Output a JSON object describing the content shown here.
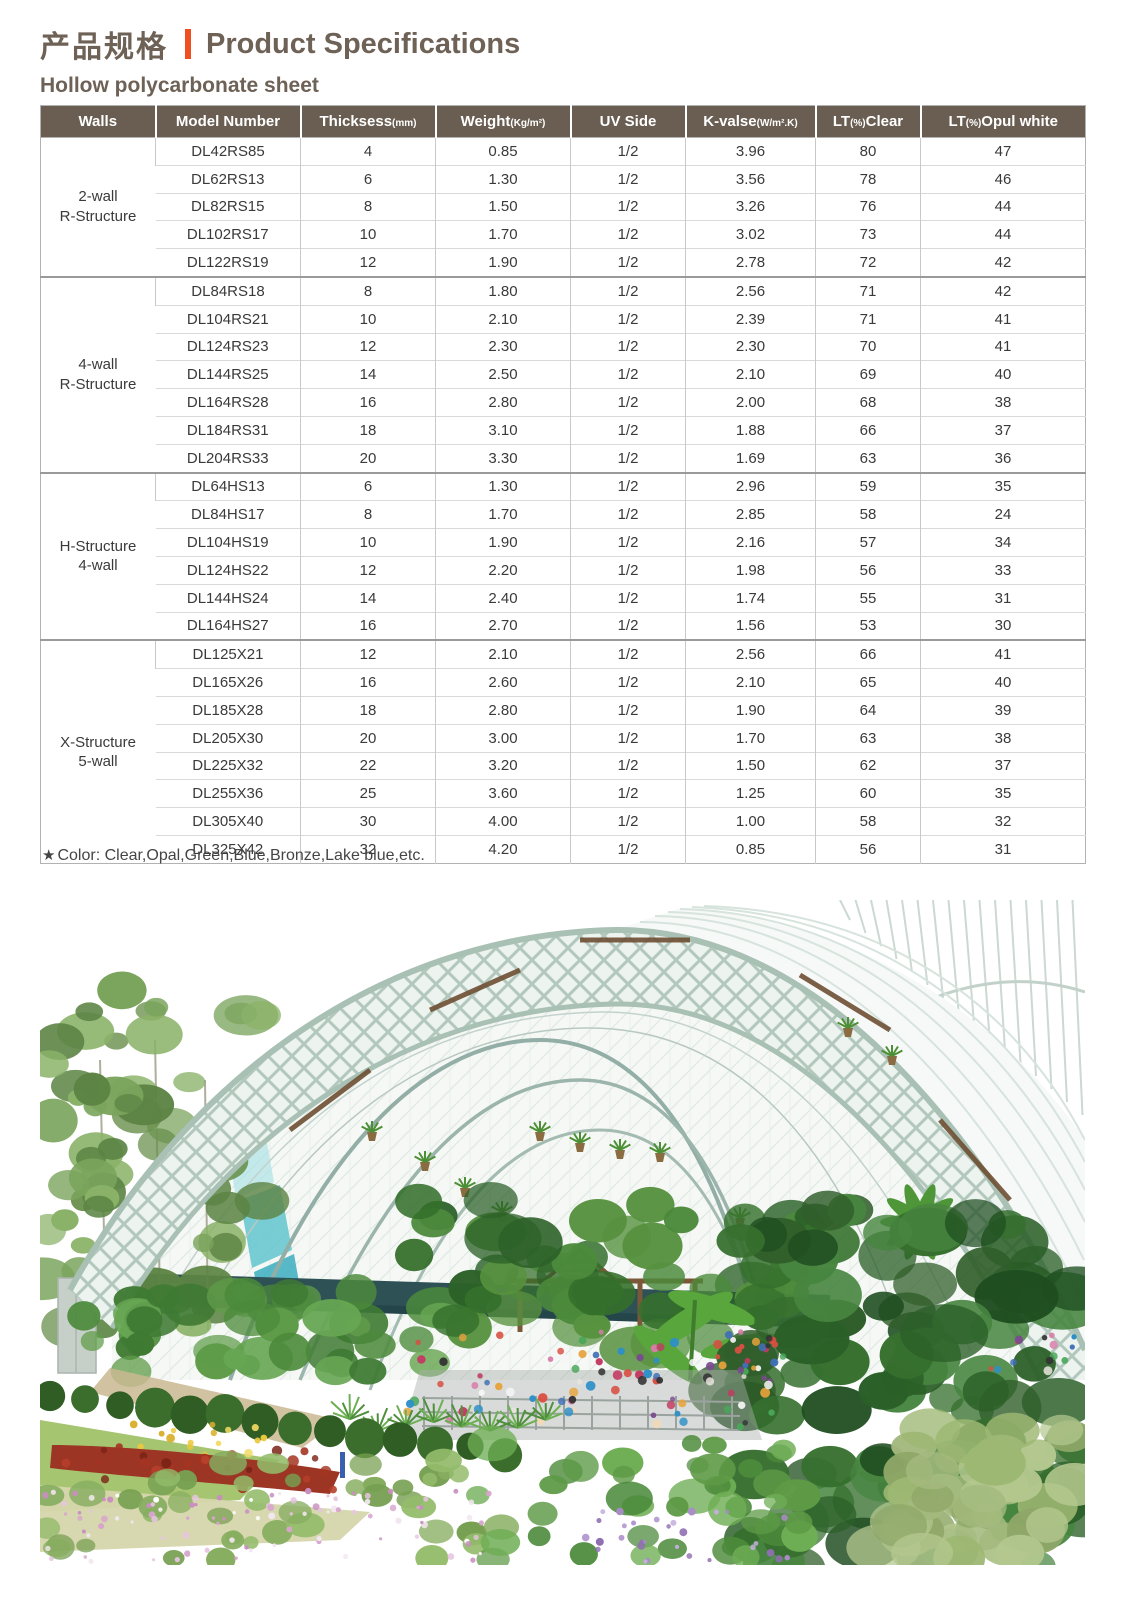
{
  "page": {
    "title_zh": "产品规格",
    "title_en": "Product Specifications",
    "subtitle": "Hollow polycarbonate sheet",
    "note_star": "★",
    "note": "Color: Clear,Opal,Green,Blue,Bronze,Lake blue,etc."
  },
  "colors": {
    "accent_orange": "#f04f21",
    "heading_brown": "#6e6156",
    "table_header_bg": "#6a5e52"
  },
  "table": {
    "headers": [
      {
        "key": "walls",
        "label": "Walls",
        "sub": "",
        "tail": ""
      },
      {
        "key": "model-number",
        "label": "Model Number",
        "sub": "",
        "tail": ""
      },
      {
        "key": "thickness",
        "label": "Thicksess",
        "sub": "(mm)",
        "tail": ""
      },
      {
        "key": "weight",
        "label": "Weight",
        "sub": "(Kg/m²)",
        "tail": ""
      },
      {
        "key": "uv-side",
        "label": "UV Side",
        "sub": "",
        "tail": ""
      },
      {
        "key": "k-value",
        "label": "K-valse",
        "sub": "(W/m².K)",
        "tail": ""
      },
      {
        "key": "lt-clear",
        "label": "LT",
        "sub": "(%)",
        "tail": "Clear"
      },
      {
        "key": "lt-opal-white",
        "label": "LT",
        "sub": "(%)",
        "tail": "Opul white"
      }
    ],
    "sections": [
      {
        "walls": [
          "2-wall",
          "R-Structure"
        ],
        "rows": [
          [
            "DL42RS85",
            "4",
            "0.85",
            "1/2",
            "3.96",
            "80",
            "47"
          ],
          [
            "DL62RS13",
            "6",
            "1.30",
            "1/2",
            "3.56",
            "78",
            "46"
          ],
          [
            "DL82RS15",
            "8",
            "1.50",
            "1/2",
            "3.26",
            "76",
            "44"
          ],
          [
            "DL102RS17",
            "10",
            "1.70",
            "1/2",
            "3.02",
            "73",
            "44"
          ],
          [
            "DL122RS19",
            "12",
            "1.90",
            "1/2",
            "2.78",
            "72",
            "42"
          ]
        ]
      },
      {
        "walls": [
          "4-wall",
          "R-Structure"
        ],
        "rows": [
          [
            "DL84RS18",
            "8",
            "1.80",
            "1/2",
            "2.56",
            "71",
            "42"
          ],
          [
            "DL104RS21",
            "10",
            "2.10",
            "1/2",
            "2.39",
            "71",
            "41"
          ],
          [
            "DL124RS23",
            "12",
            "2.30",
            "1/2",
            "2.30",
            "70",
            "41"
          ],
          [
            "DL144RS25",
            "14",
            "2.50",
            "1/2",
            "2.10",
            "69",
            "40"
          ],
          [
            "DL164RS28",
            "16",
            "2.80",
            "1/2",
            "2.00",
            "68",
            "38"
          ],
          [
            "DL184RS31",
            "18",
            "3.10",
            "1/2",
            "1.88",
            "66",
            "37"
          ],
          [
            "DL204RS33",
            "20",
            "3.30",
            "1/2",
            "1.69",
            "63",
            "36"
          ]
        ]
      },
      {
        "walls": [
          "H-Structure",
          "4-wall"
        ],
        "rows": [
          [
            "DL64HS13",
            "6",
            "1.30",
            "1/2",
            "2.96",
            "59",
            "35"
          ],
          [
            "DL84HS17",
            "8",
            "1.70",
            "1/2",
            "2.85",
            "58",
            "24"
          ],
          [
            "DL104HS19",
            "10",
            "1.90",
            "1/2",
            "2.16",
            "57",
            "34"
          ],
          [
            "DL124HS22",
            "12",
            "2.20",
            "1/2",
            "1.98",
            "56",
            "33"
          ],
          [
            "DL144HS24",
            "14",
            "2.40",
            "1/2",
            "1.74",
            "55",
            "31"
          ],
          [
            "DL164HS27",
            "16",
            "2.70",
            "1/2",
            "1.56",
            "53",
            "30"
          ]
        ]
      },
      {
        "walls": [
          "X-Structure",
          "5-wall"
        ],
        "rows": [
          [
            "DL125X21",
            "12",
            "2.10",
            "1/2",
            "2.56",
            "66",
            "41"
          ],
          [
            "DL165X26",
            "16",
            "2.60",
            "1/2",
            "2.10",
            "65",
            "40"
          ],
          [
            "DL185X28",
            "18",
            "2.80",
            "1/2",
            "1.90",
            "64",
            "39"
          ],
          [
            "DL205X30",
            "20",
            "3.00",
            "1/2",
            "1.70",
            "63",
            "38"
          ],
          [
            "DL225X32",
            "22",
            "3.20",
            "1/2",
            "1.50",
            "62",
            "37"
          ],
          [
            "DL255X36",
            "25",
            "3.60",
            "1/2",
            "1.25",
            "60",
            "35"
          ],
          [
            "DL305X40",
            "30",
            "4.00",
            "1/2",
            "1.00",
            "58",
            "32"
          ],
          [
            "DL325X42",
            "32",
            "4.20",
            "1/2",
            "0.85",
            "56",
            "31"
          ]
        ]
      }
    ]
  },
  "photo": {
    "description": "Curved steel truss greenhouse conservatory with tropical plants, visitors and flower beds"
  }
}
